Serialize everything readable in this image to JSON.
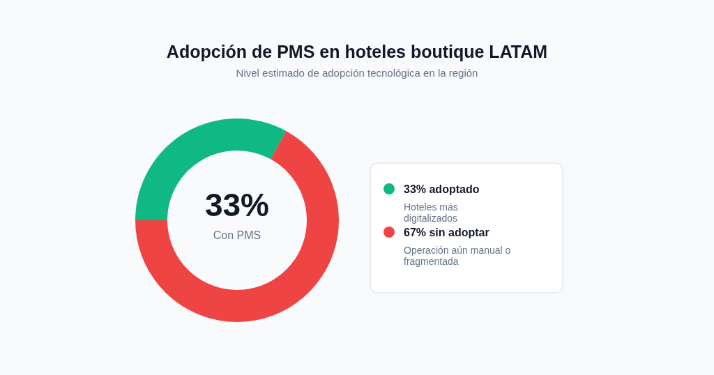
{
  "chart_data": {
    "type": "donut",
    "title": "Adopción de PMS en hoteles boutique LATAM",
    "subtitle": "Nivel estimado de adopción tecnológica en la región",
    "categories": [
      "33% adoptado",
      "67% sin adoptar"
    ],
    "values": [
      33,
      67
    ],
    "colors": [
      "#10b981",
      "#ef4444"
    ],
    "legend": "right",
    "annotations": [
      "33%",
      "Con PMS",
      "Hoteles más digitalizados",
      "Operación aún manual o fragmentada"
    ]
  }
}
